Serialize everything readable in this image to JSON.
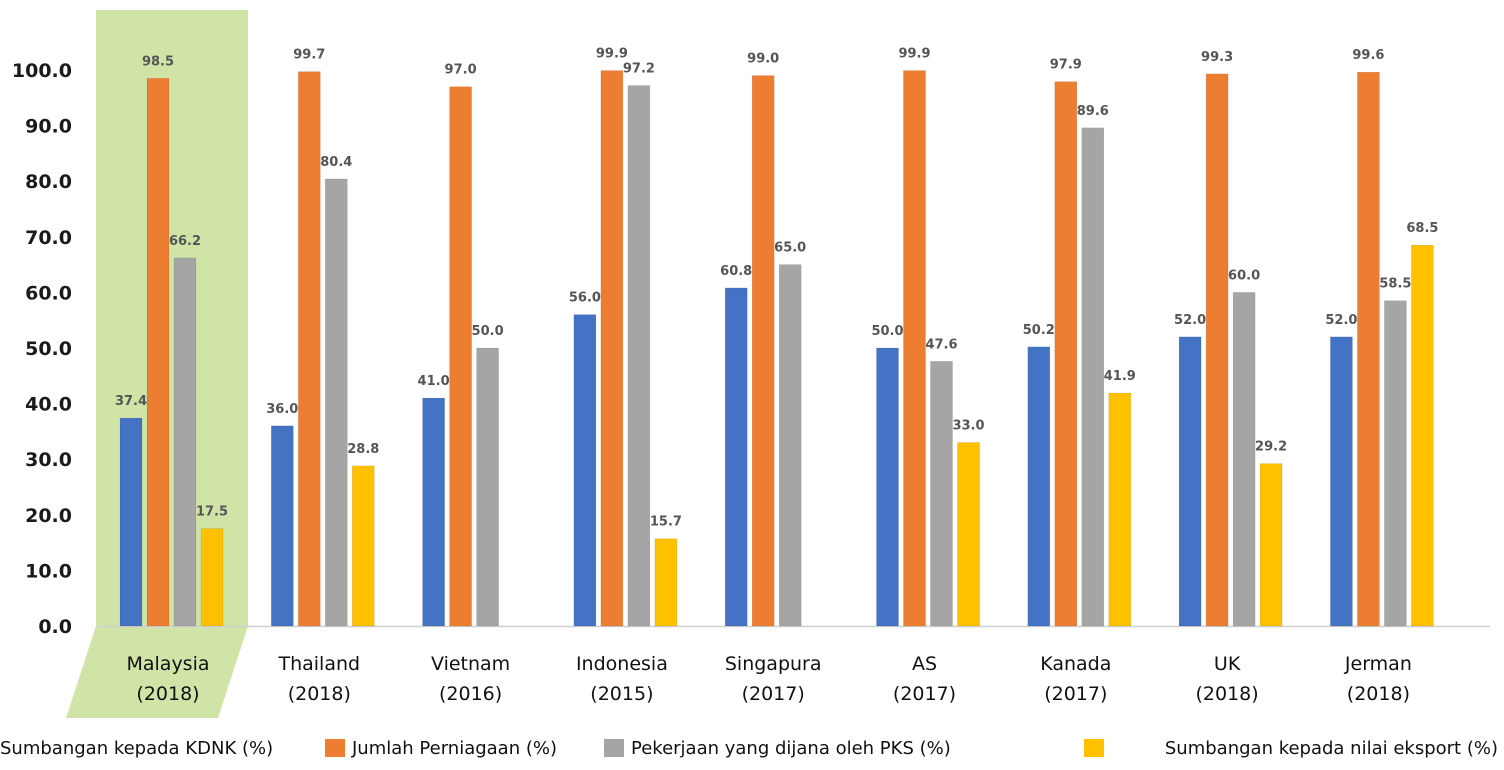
{
  "chart_data": {
    "type": "bar",
    "ylim": [
      0,
      100
    ],
    "yticks": [
      "0.0",
      "10.0",
      "20.0",
      "30.0",
      "40.0",
      "50.0",
      "60.0",
      "70.0",
      "80.0",
      "90.0",
      "100.0"
    ],
    "highlighted_category": "Malaysia",
    "categories": [
      {
        "name": "Malaysia",
        "year": "(2018)"
      },
      {
        "name": "Thailand",
        "year": "(2018)"
      },
      {
        "name": "Vietnam",
        "year": "(2016)"
      },
      {
        "name": "Indonesia",
        "year": "(2015)"
      },
      {
        "name": "Singapura",
        "year": "(2017)"
      },
      {
        "name": "AS",
        "year": "(2017)"
      },
      {
        "name": "Kanada",
        "year": "(2017)"
      },
      {
        "name": "UK",
        "year": "(2018)"
      },
      {
        "name": "Jerman",
        "year": "(2018)"
      }
    ],
    "series": [
      {
        "name": "Sumbangan kepada KDNK (%)",
        "color": "#4472C4",
        "values": [
          37.4,
          36.0,
          41.0,
          56.0,
          60.8,
          50.0,
          50.2,
          52.0,
          52.0
        ]
      },
      {
        "name": "Jumlah Perniagaan (%)",
        "color": "#ED7D31",
        "values": [
          98.5,
          99.7,
          97.0,
          99.9,
          99.0,
          99.9,
          97.9,
          99.3,
          99.6
        ]
      },
      {
        "name": "Pekerjaan yang dijana oleh PKS (%)",
        "color": "#A5A5A5",
        "values": [
          66.2,
          80.4,
          50.0,
          97.2,
          65.0,
          47.6,
          89.6,
          60.0,
          58.5
        ]
      },
      {
        "name": "Sumbangan kepada nilai eksport (%)",
        "color": "#FFC000",
        "values": [
          17.5,
          28.8,
          null,
          15.7,
          null,
          33.0,
          41.9,
          29.2,
          68.5
        ]
      }
    ],
    "highlight_color": "#D1E4A8",
    "legend_position": "bottom"
  }
}
